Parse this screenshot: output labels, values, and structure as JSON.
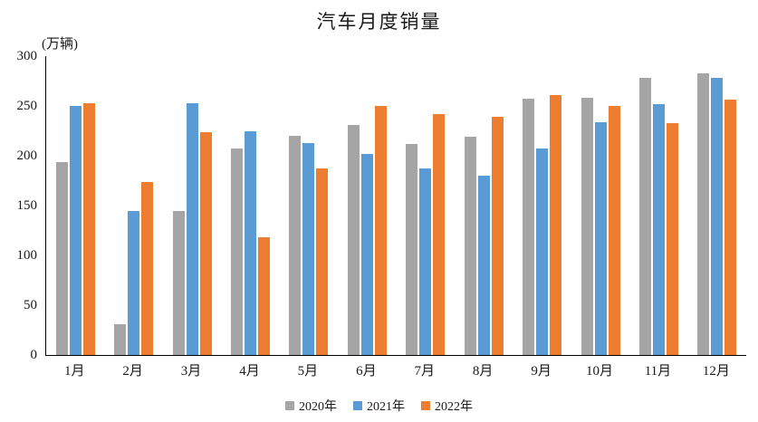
{
  "chart_data": {
    "type": "bar",
    "title": "汽车月度销量",
    "ylabel": "(万辆)",
    "xlabel": "",
    "categories": [
      "1月",
      "2月",
      "3月",
      "4月",
      "5月",
      "6月",
      "7月",
      "8月",
      "9月",
      "10月",
      "11月",
      "12月"
    ],
    "series": [
      {
        "name": "2020年",
        "color": "#A5A5A5",
        "values": [
          194,
          31,
          145,
          207,
          220,
          231,
          212,
          219,
          257,
          258,
          278,
          283
        ]
      },
      {
        "name": "2021年",
        "color": "#5B9BD5",
        "values": [
          250,
          145,
          253,
          225,
          213,
          202,
          187,
          180,
          207,
          234,
          252,
          278
        ]
      },
      {
        "name": "2022年",
        "color": "#ED7D31",
        "values": [
          253,
          174,
          224,
          118,
          187,
          250,
          242,
          239,
          261,
          250,
          233,
          256
        ]
      }
    ],
    "ylim": [
      0,
      300
    ],
    "yticks": [
      0,
      50,
      100,
      150,
      200,
      250,
      300
    ],
    "grid": false,
    "legend_position": "bottom",
    "axis_color": "#000000",
    "text_color": "#1a1a1a"
  }
}
